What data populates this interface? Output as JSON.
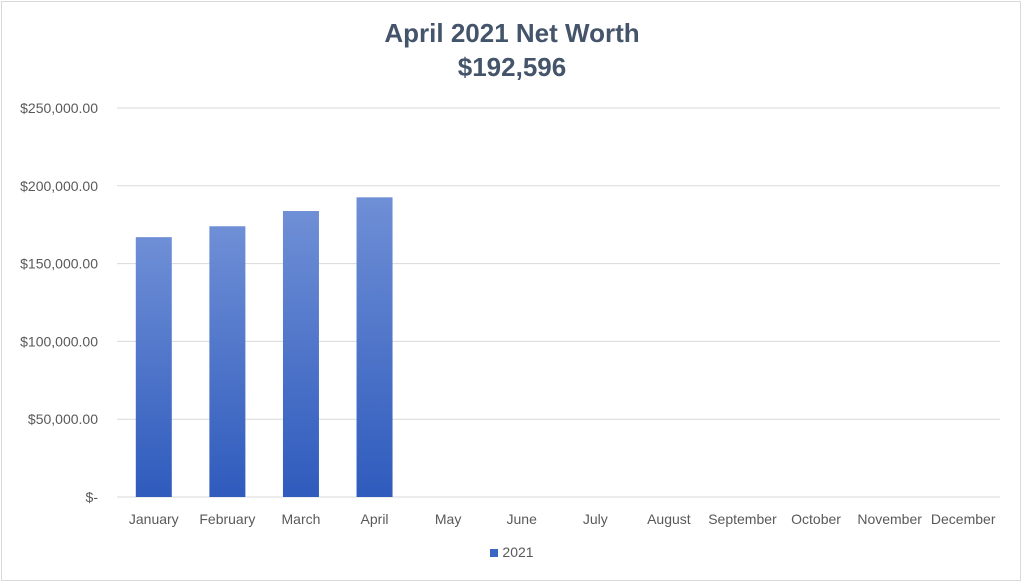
{
  "chart_data": {
    "type": "bar",
    "title": "April 2021 Net Worth",
    "subtitle": "$192,596",
    "categories": [
      "January",
      "February",
      "March",
      "April",
      "May",
      "June",
      "July",
      "August",
      "September",
      "October",
      "November",
      "December"
    ],
    "series": [
      {
        "name": "2021",
        "values": [
          167000,
          174000,
          183800,
          192596,
          null,
          null,
          null,
          null,
          null,
          null,
          null,
          null
        ]
      }
    ],
    "ylim": [
      0,
      250000
    ],
    "yticks": [
      0,
      50000,
      100000,
      150000,
      200000,
      250000
    ],
    "ytick_labels": [
      "$-",
      "$50,000.00",
      "$100,000.00",
      "$150,000.00",
      "$200,000.00",
      "$250,000.00"
    ],
    "grid": true,
    "legend_position": "bottom",
    "colors": {
      "bar_top": "#6f8fd6",
      "bar_bottom": "#2f5bbd",
      "title": "#44546a",
      "grid": "#d9d9d9",
      "legend_swatch": "#3a66c4"
    }
  }
}
